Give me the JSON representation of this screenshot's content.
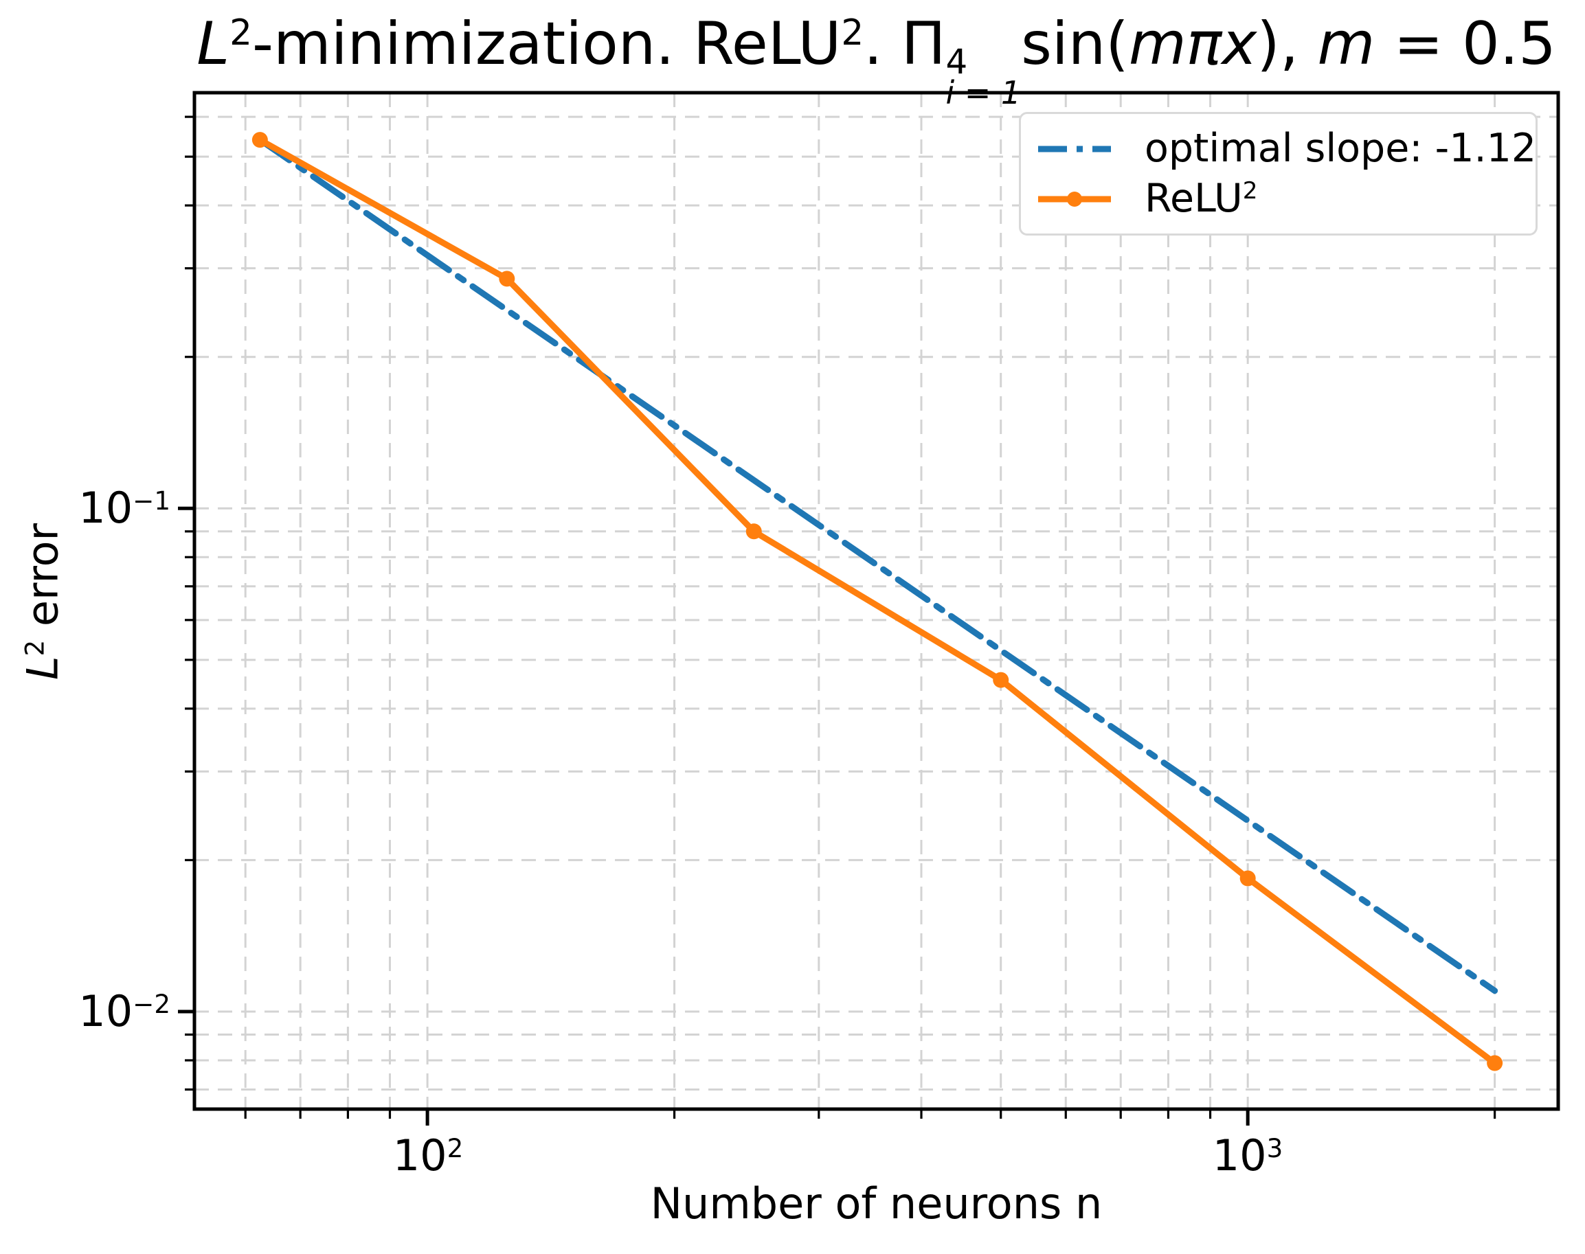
{
  "colors": {
    "series_blue": "#1f77b4",
    "series_orange": "#ff7f0e",
    "grid": "#d3d3d3",
    "spine": "#000000",
    "legend_border": "#d9d9d9",
    "background": "#ffffff",
    "text": "#000000"
  },
  "title": {
    "L": "L",
    "L_exp": "2",
    "part1": "-minimization. ReLU",
    "relu_exp": "2",
    "part2": ". Π",
    "pi_sup": "4",
    "pi_sub": "i = 1",
    "sin": "sin(",
    "mpx": "mπx",
    "close": "), ",
    "m": "m",
    "eq": " = 0.5"
  },
  "axes": {
    "x_label": "Number of neurons n",
    "y_label_L": "L",
    "y_label_exp": "2",
    "y_label_rest": " error",
    "x_tick_labels": [
      {
        "base": "10",
        "exp": "2"
      },
      {
        "base": "10",
        "exp": "3"
      }
    ],
    "y_tick_labels": [
      {
        "base": "10",
        "exp": "−1"
      },
      {
        "base": "10",
        "exp": "−2"
      }
    ]
  },
  "legend": {
    "items": [
      {
        "label": "optimal slope: -1.12"
      },
      {
        "base": "ReLU",
        "exp": "2"
      }
    ]
  },
  "chart_data": {
    "type": "line",
    "title": "L²-minimization. ReLU². Π_{i=1}^{4} sin(mπx), m = 0.5",
    "xlabel": "Number of neurons n",
    "ylabel": "L² error",
    "x_scale": "log",
    "y_scale": "log",
    "xlim": [
      52,
      2390
    ],
    "ylim": [
      0.0064,
      0.67
    ],
    "x_major_ticks": [
      100,
      1000
    ],
    "y_major_ticks": [
      0.1,
      0.01
    ],
    "grid": {
      "which": "both",
      "linestyle": "dashed",
      "color": "#d3d3d3"
    },
    "legend_position": "upper right",
    "series": [
      {
        "name": "optimal slope: -1.12",
        "color": "#1f77b4",
        "linestyle": "dashdot",
        "marker": null,
        "slope": -1.12,
        "x": [
          62.5,
          2000
        ],
        "y": [
          0.54,
          0.011
        ]
      },
      {
        "name": "ReLU²",
        "color": "#ff7f0e",
        "linestyle": "solid",
        "marker": "o",
        "x": [
          62.5,
          125,
          250,
          500,
          1000,
          2000
        ],
        "y": [
          0.54,
          0.286,
          0.09,
          0.0456,
          0.0184,
          0.0079
        ]
      }
    ]
  }
}
